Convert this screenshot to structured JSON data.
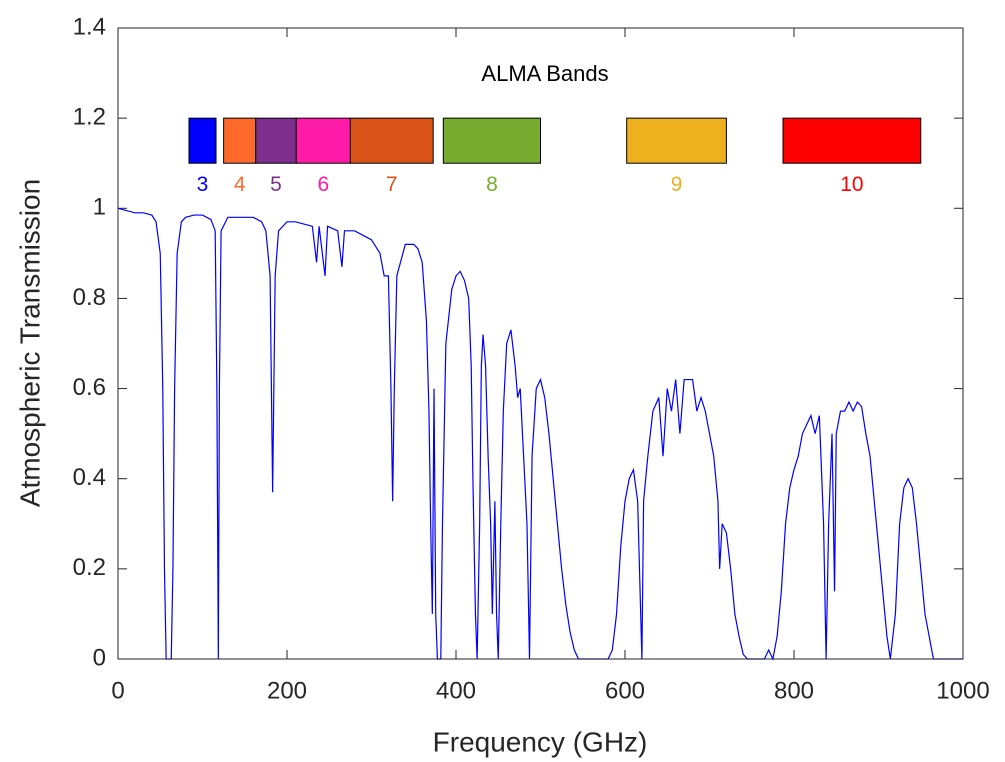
{
  "chart_data": {
    "type": "line",
    "annotation": "ALMA Bands",
    "x_label": "Frequency (GHz)",
    "y_label": "Atmospheric Transmission",
    "color": "#0000ff",
    "xlim": [
      0,
      1000
    ],
    "ylim": [
      0,
      1.4
    ],
    "xticks": [
      0,
      200,
      400,
      600,
      800,
      1000
    ],
    "yticks": [
      0,
      0.2,
      0.4,
      0.6,
      0.8,
      1,
      1.2,
      1.4
    ],
    "x": [
      0,
      10,
      20,
      30,
      40,
      45,
      50,
      53,
      55,
      57,
      63,
      65,
      67,
      70,
      75,
      80,
      90,
      100,
      110,
      115,
      117,
      118.75,
      120,
      122,
      130,
      140,
      150,
      160,
      170,
      175,
      180,
      183,
      186,
      190,
      200,
      210,
      220,
      230,
      235,
      238,
      245,
      248,
      260,
      265,
      268,
      280,
      290,
      300,
      310,
      315,
      320,
      323,
      325,
      327,
      330,
      340,
      350,
      355,
      360,
      365,
      368,
      370,
      372,
      374,
      376,
      378,
      382,
      384,
      388,
      395,
      400,
      405,
      410,
      415,
      418,
      420,
      423,
      425,
      428,
      430,
      432,
      435,
      438,
      441,
      443,
      446,
      448,
      450,
      453,
      456,
      460,
      465,
      470,
      473,
      476,
      480,
      484,
      487,
      490,
      495,
      500,
      505,
      510,
      515,
      520,
      525,
      530,
      535,
      540,
      545,
      580,
      585,
      590,
      595,
      600,
      605,
      610,
      615,
      620,
      622,
      627,
      633,
      640,
      645,
      650,
      655,
      660,
      665,
      670,
      680,
      685,
      690,
      695,
      700,
      705,
      710,
      712,
      715,
      720,
      725,
      730,
      735,
      740,
      745,
      765,
      770,
      775,
      780,
      785,
      790,
      795,
      800,
      805,
      810,
      815,
      820,
      825,
      830,
      835,
      838,
      841,
      845,
      848,
      850,
      855,
      860,
      865,
      870,
      875,
      880,
      885,
      890,
      895,
      900,
      905,
      910,
      914,
      920,
      925,
      930,
      935,
      940,
      945,
      950,
      955,
      960,
      965,
      1000
    ],
    "values": [
      1.0,
      0.995,
      0.99,
      0.99,
      0.985,
      0.97,
      0.9,
      0.6,
      0.2,
      0,
      0,
      0.2,
      0.6,
      0.9,
      0.97,
      0.98,
      0.985,
      0.985,
      0.975,
      0.95,
      0.6,
      0,
      0.6,
      0.95,
      0.98,
      0.98,
      0.98,
      0.98,
      0.97,
      0.95,
      0.85,
      0.37,
      0.85,
      0.95,
      0.97,
      0.97,
      0.965,
      0.96,
      0.88,
      0.96,
      0.85,
      0.96,
      0.95,
      0.87,
      0.95,
      0.95,
      0.94,
      0.93,
      0.9,
      0.85,
      0.85,
      0.6,
      0.35,
      0.6,
      0.85,
      0.92,
      0.92,
      0.91,
      0.88,
      0.75,
      0.55,
      0.3,
      0.1,
      0.6,
      0.1,
      0,
      0,
      0.3,
      0.7,
      0.82,
      0.85,
      0.86,
      0.84,
      0.8,
      0.65,
      0.4,
      0.1,
      0,
      0.3,
      0.65,
      0.72,
      0.65,
      0.45,
      0.3,
      0.1,
      0.35,
      0.1,
      0,
      0.3,
      0.55,
      0.7,
      0.73,
      0.65,
      0.58,
      0.6,
      0.45,
      0.3,
      0,
      0.45,
      0.6,
      0.62,
      0.58,
      0.5,
      0.4,
      0.3,
      0.2,
      0.12,
      0.06,
      0.02,
      0,
      0,
      0.02,
      0.1,
      0.25,
      0.35,
      0.4,
      0.42,
      0.35,
      0,
      0.35,
      0.45,
      0.55,
      0.58,
      0.45,
      0.6,
      0.55,
      0.62,
      0.5,
      0.62,
      0.62,
      0.55,
      0.58,
      0.55,
      0.5,
      0.45,
      0.35,
      0.2,
      0.3,
      0.28,
      0.2,
      0.1,
      0.05,
      0.01,
      0,
      0,
      0.02,
      0,
      0.05,
      0.15,
      0.3,
      0.38,
      0.42,
      0.45,
      0.5,
      0.52,
      0.54,
      0.5,
      0.54,
      0.3,
      0,
      0.3,
      0.5,
      0.15,
      0.5,
      0.55,
      0.55,
      0.57,
      0.55,
      0.57,
      0.56,
      0.5,
      0.45,
      0.35,
      0.25,
      0.15,
      0.05,
      0,
      0.1,
      0.3,
      0.38,
      0.4,
      0.38,
      0.3,
      0.2,
      0.1,
      0.05,
      0,
      0
    ],
    "bands": [
      {
        "name": "3",
        "color": "#0000ff",
        "x": [
          84,
          116
        ],
        "y": [
          1.1,
          1.2
        ]
      },
      {
        "name": "4",
        "color": "#ff6a2a",
        "x": [
          125,
          163
        ],
        "y": [
          1.1,
          1.2
        ]
      },
      {
        "name": "5",
        "color": "#7e2f8e",
        "x": [
          163,
          211
        ],
        "y": [
          1.1,
          1.2
        ]
      },
      {
        "name": "6",
        "color": "#ff1aa8",
        "x": [
          211,
          275
        ],
        "y": [
          1.1,
          1.2
        ]
      },
      {
        "name": "7",
        "color": "#d95319",
        "x": [
          275,
          373
        ],
        "y": [
          1.1,
          1.2
        ]
      },
      {
        "name": "8",
        "color": "#77ac30",
        "x": [
          385,
          500
        ],
        "y": [
          1.1,
          1.2
        ]
      },
      {
        "name": "9",
        "color": "#edb120",
        "x": [
          602,
          720
        ],
        "y": [
          1.1,
          1.2
        ]
      },
      {
        "name": "10",
        "color": "#ff0000",
        "x": [
          787,
          950
        ],
        "y": [
          1.1,
          1.2
        ]
      }
    ]
  }
}
